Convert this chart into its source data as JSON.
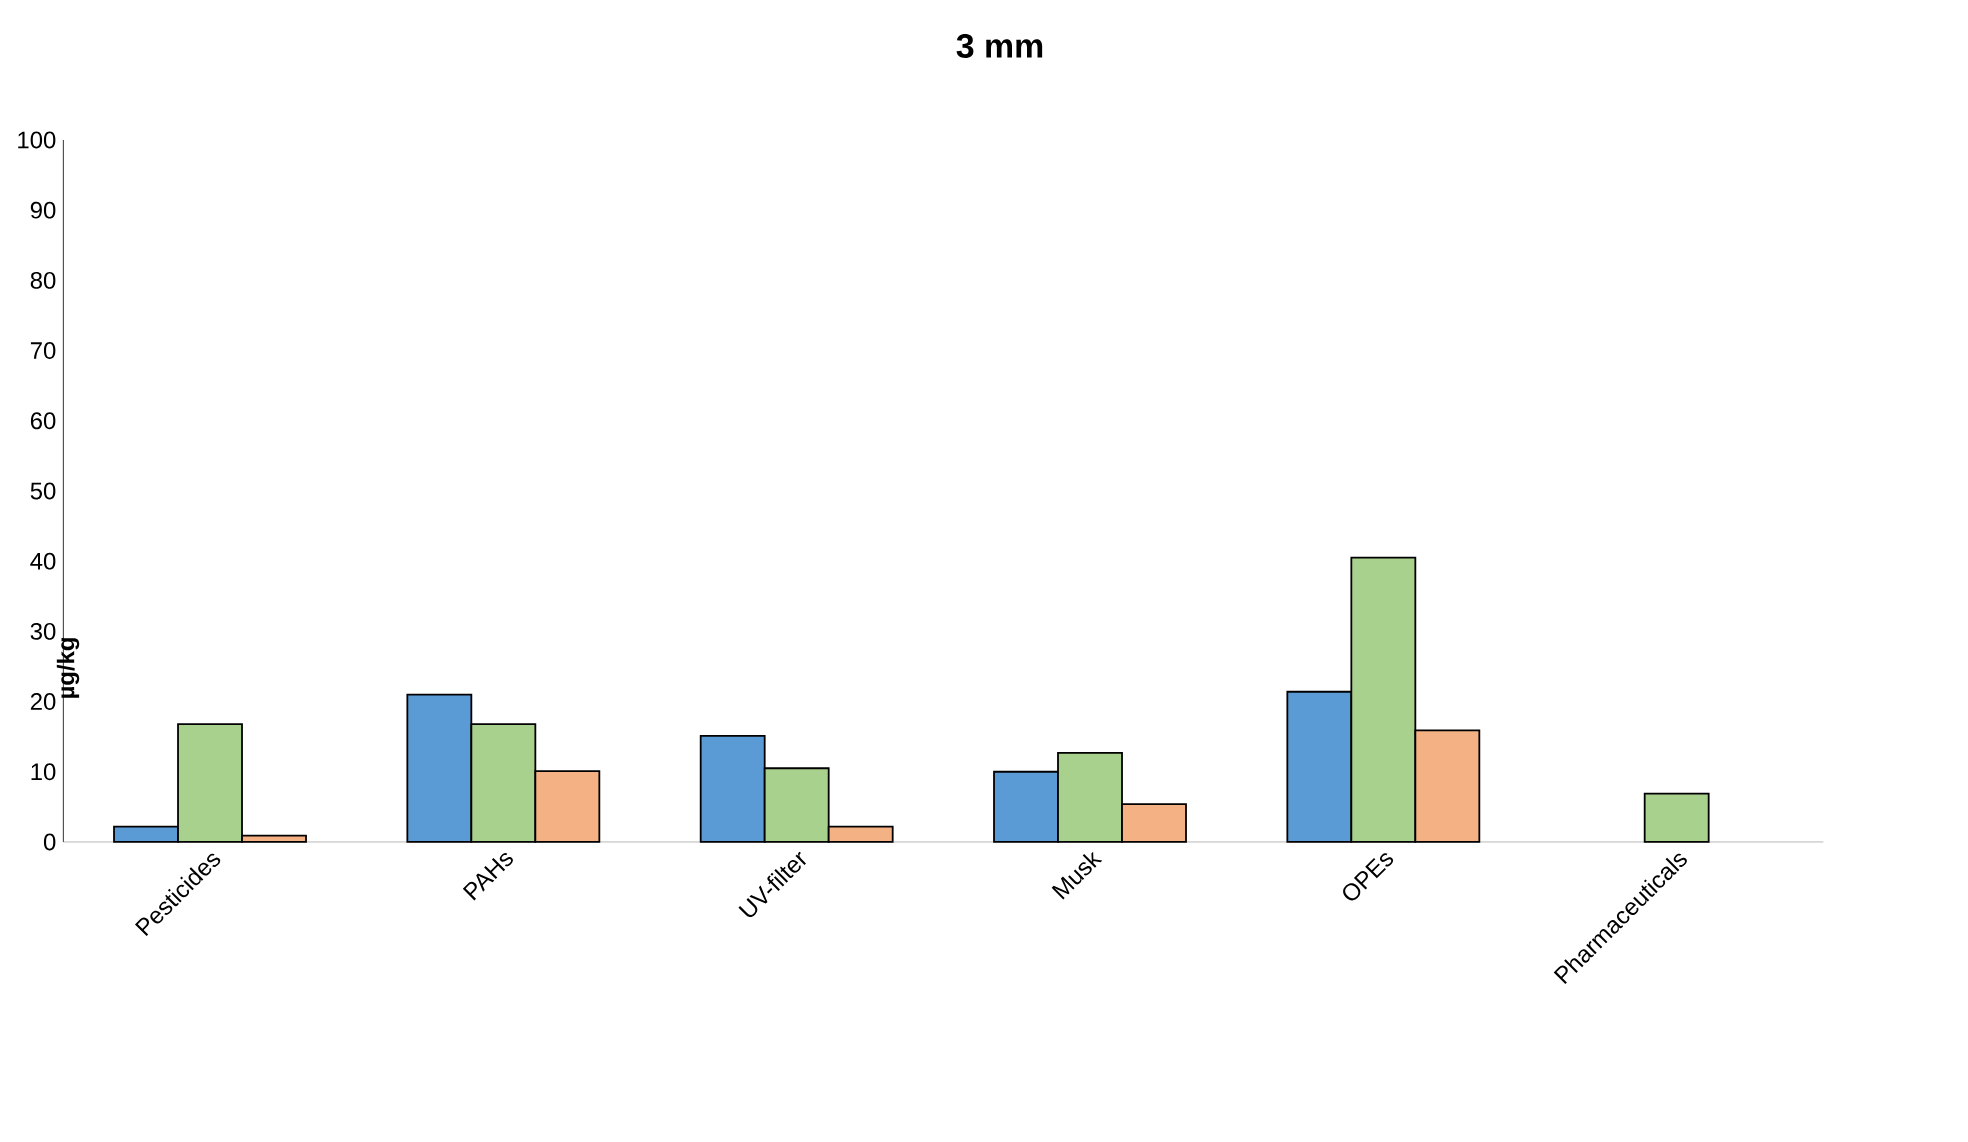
{
  "chart_data": {
    "type": "bar",
    "title": "3 mm",
    "ylabel": "µg/kg",
    "categories": [
      "Pesticides",
      "PAHs",
      "UV-filter",
      "Musk",
      "OPEs",
      "Pharmaceuticals"
    ],
    "series": [
      {
        "color": "#5b9bd5",
        "values": [
          2.2,
          21.0,
          15.1,
          10.0,
          21.4,
          null
        ]
      },
      {
        "color": "#a9d18e",
        "values": [
          16.8,
          16.8,
          10.5,
          12.7,
          40.5,
          6.9
        ]
      },
      {
        "color": "#f4b183",
        "values": [
          0.9,
          10.1,
          2.2,
          5.4,
          15.9,
          null
        ]
      }
    ],
    "ylim": [
      0,
      100
    ],
    "yticks": [
      0,
      10,
      20,
      30,
      40,
      50,
      60,
      70,
      80,
      90,
      100
    ]
  }
}
